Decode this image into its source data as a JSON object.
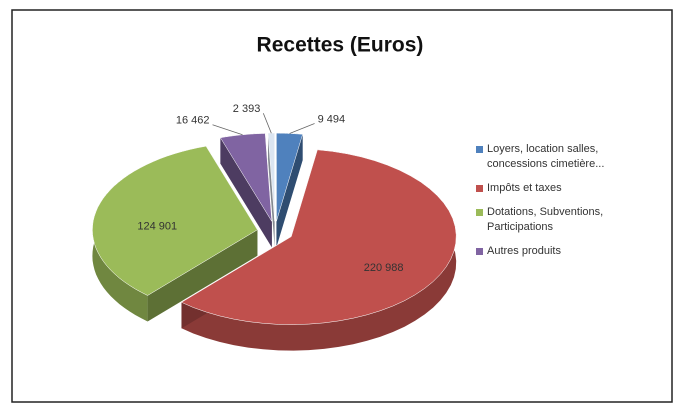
{
  "chart_data": {
    "type": "pie3d",
    "title": "Recettes (Euros)",
    "categories": [
      "Loyers, location salles, concessions cimetière...",
      "Impôts et taxes",
      "Dotations, Subventions, Participations",
      "Autres produits",
      null
    ],
    "values": [
      9494,
      220988,
      124901,
      16462,
      2393
    ],
    "value_labels": [
      "9 494",
      "220 988",
      "124 901",
      "16 462",
      "2 393"
    ],
    "colors": [
      "#4f81bd",
      "#c0504d",
      "#9bbb59",
      "#8064a2",
      "#dbe5f1"
    ]
  }
}
